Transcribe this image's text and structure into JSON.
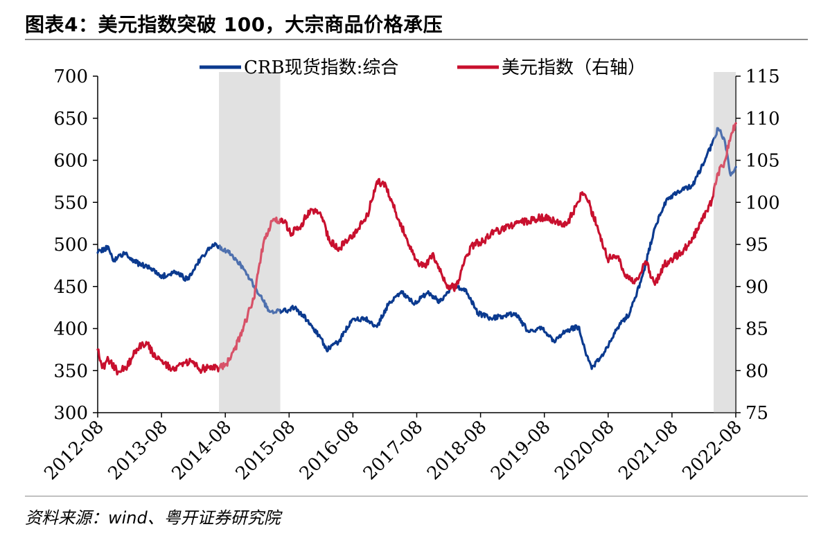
{
  "title": "图表4：美元指数突破 100，大宗商品价格承压",
  "source": "资料来源：wind、粤开证券研究院",
  "colors": {
    "crb": "#0b3a8f",
    "usd": "#c8102e",
    "shade": "#cfcfcf",
    "axis": "#000000"
  },
  "chart_data": {
    "type": "line",
    "title": "图表4：美元指数突破 100，大宗商品价格承压",
    "x_tick_labels": [
      "2012-08",
      "2013-08",
      "2014-08",
      "2015-08",
      "2016-08",
      "2017-08",
      "2018-08",
      "2019-08",
      "2020-08",
      "2021-08",
      "2022-08"
    ],
    "x_range": [
      2012.58,
      2022.68
    ],
    "ylim_left": [
      300,
      700
    ],
    "yticks_left": [
      300,
      350,
      400,
      450,
      500,
      550,
      600,
      650,
      700
    ],
    "ylim_right": [
      75,
      115
    ],
    "yticks_right": [
      75,
      80,
      85,
      90,
      95,
      100,
      105,
      110,
      115
    ],
    "legend": [
      "CRB现货指数:综合",
      "美元指数（右轴）"
    ],
    "legend_position": "top-center",
    "shaded_periods": [
      [
        2014.5,
        2015.47
      ],
      [
        2022.33,
        2022.68
      ]
    ],
    "series": [
      {
        "name": "CRB现货指数:综合",
        "axis": "left",
        "x": [
          2012.58,
          2012.75,
          2012.83,
          2013.0,
          2013.2,
          2013.4,
          2013.6,
          2013.8,
          2014.0,
          2014.2,
          2014.4,
          2014.5,
          2014.7,
          2014.9,
          2015.1,
          2015.3,
          2015.5,
          2015.7,
          2015.9,
          2016.1,
          2016.2,
          2016.4,
          2016.6,
          2016.8,
          2016.9,
          2017.0,
          2017.2,
          2017.4,
          2017.6,
          2017.8,
          2018.0,
          2018.2,
          2018.4,
          2018.6,
          2018.8,
          2019.0,
          2019.2,
          2019.4,
          2019.6,
          2019.8,
          2020.0,
          2020.2,
          2020.3,
          2020.4,
          2020.6,
          2020.8,
          2021.0,
          2021.2,
          2021.4,
          2021.6,
          2021.8,
          2022.0,
          2022.2,
          2022.3,
          2022.4,
          2022.5,
          2022.6,
          2022.68
        ],
        "y": [
          490,
          497,
          480,
          490,
          478,
          472,
          462,
          468,
          458,
          482,
          500,
          498,
          488,
          470,
          445,
          420,
          420,
          425,
          410,
          390,
          375,
          385,
          410,
          412,
          408,
          402,
          432,
          442,
          430,
          442,
          432,
          450,
          447,
          418,
          412,
          415,
          418,
          396,
          402,
          385,
          398,
          402,
          372,
          352,
          372,
          400,
          418,
          462,
          520,
          555,
          563,
          570,
          602,
          618,
          638,
          625,
          582,
          592
        ]
      },
      {
        "name": "美元指数（右轴）",
        "axis": "right",
        "x": [
          2012.58,
          2012.65,
          2012.75,
          2012.9,
          2013.05,
          2013.2,
          2013.35,
          2013.5,
          2013.6,
          2013.75,
          2013.9,
          2014.05,
          2014.2,
          2014.35,
          2014.5,
          2014.62,
          2014.75,
          2014.9,
          2015.05,
          2015.2,
          2015.35,
          2015.5,
          2015.65,
          2015.8,
          2015.95,
          2016.1,
          2016.25,
          2016.4,
          2016.55,
          2016.7,
          2016.85,
          2017.0,
          2017.15,
          2017.3,
          2017.45,
          2017.6,
          2017.75,
          2017.9,
          2018.1,
          2018.25,
          2018.4,
          2018.55,
          2018.7,
          2018.85,
          2019.0,
          2019.2,
          2019.4,
          2019.6,
          2019.8,
          2020.0,
          2020.15,
          2020.25,
          2020.35,
          2020.5,
          2020.65,
          2020.8,
          2020.95,
          2021.1,
          2021.25,
          2021.4,
          2021.55,
          2021.7,
          2021.85,
          2022.0,
          2022.15,
          2022.3,
          2022.4,
          2022.5,
          2022.6,
          2022.68
        ],
        "y": [
          82.5,
          80.3,
          81.3,
          79.8,
          80.5,
          82.6,
          83.4,
          81.4,
          81.2,
          80.2,
          80.8,
          81.2,
          80.1,
          80.5,
          80.2,
          80.8,
          82.5,
          85.5,
          88.5,
          95,
          97.8,
          98,
          96.3,
          97.3,
          99.2,
          98.8,
          95.4,
          94.6,
          95.5,
          96.8,
          98.5,
          102.5,
          101.8,
          98.8,
          96.1,
          93.2,
          92.4,
          93.7,
          90.2,
          89.8,
          93.5,
          95.2,
          95.4,
          96.6,
          96.8,
          97.5,
          97.8,
          98.2,
          97.9,
          97.3,
          99.5,
          101.2,
          100,
          96.8,
          93.3,
          93.6,
          91,
          90.7,
          93,
          90.2,
          92.6,
          93.4,
          94.2,
          95.8,
          97.8,
          100.2,
          103.5,
          104.8,
          107.8,
          109.4
        ]
      }
    ]
  }
}
